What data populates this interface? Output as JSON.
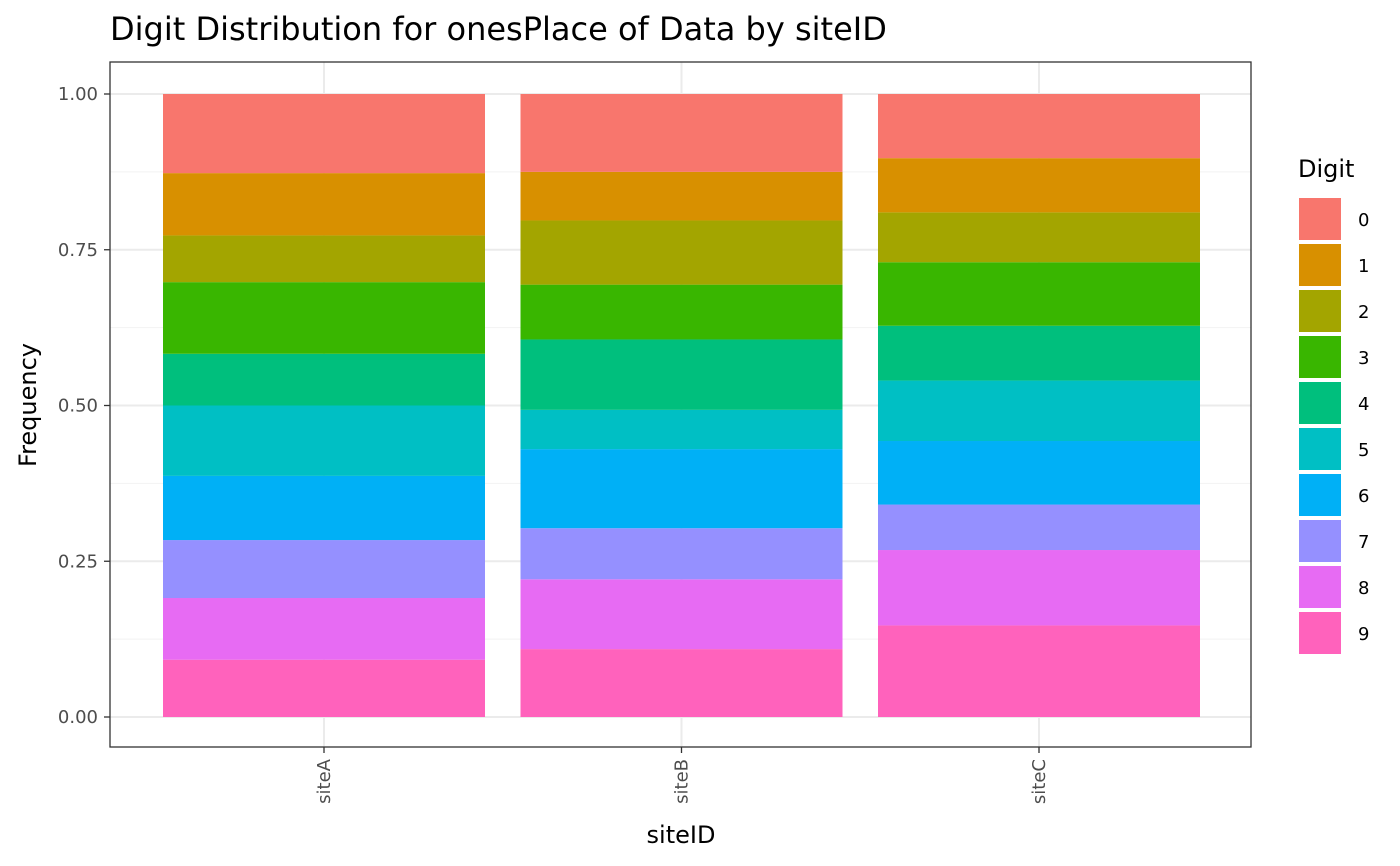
{
  "chart_data": {
    "type": "bar",
    "stacked": true,
    "title": "Digit Distribution for onesPlace of Data by siteID",
    "xlabel": "siteID",
    "ylabel": "Frequency",
    "ylim": [
      0,
      1
    ],
    "yticks": [
      "0.00",
      "0.25",
      "0.50",
      "0.75",
      "1.00"
    ],
    "grid": true,
    "legend": {
      "title": "Digit",
      "position": "right"
    },
    "categories": [
      "siteA",
      "siteB",
      "siteC"
    ],
    "series": [
      {
        "name": "0",
        "color": "#F8766D",
        "values": [
          0.127,
          0.125,
          0.103
        ]
      },
      {
        "name": "1",
        "color": "#D89000",
        "values": [
          0.1,
          0.078,
          0.087
        ]
      },
      {
        "name": "2",
        "color": "#A3A500",
        "values": [
          0.075,
          0.103,
          0.08
        ]
      },
      {
        "name": "3",
        "color": "#39B600",
        "values": [
          0.115,
          0.088,
          0.102
        ]
      },
      {
        "name": "4",
        "color": "#00BF7D",
        "values": [
          0.083,
          0.113,
          0.088
        ]
      },
      {
        "name": "5",
        "color": "#00BFC4",
        "values": [
          0.113,
          0.063,
          0.097
        ]
      },
      {
        "name": "6",
        "color": "#00B0F6",
        "values": [
          0.103,
          0.127,
          0.102
        ]
      },
      {
        "name": "7",
        "color": "#9590FF",
        "values": [
          0.093,
          0.082,
          0.073
        ]
      },
      {
        "name": "8",
        "color": "#E76BF3",
        "values": [
          0.099,
          0.112,
          0.121
        ]
      },
      {
        "name": "9",
        "color": "#FF62BC",
        "values": [
          0.092,
          0.109,
          0.147
        ]
      }
    ]
  }
}
